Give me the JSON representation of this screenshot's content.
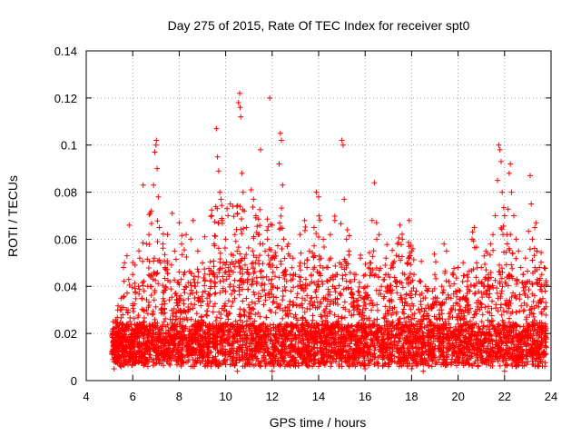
{
  "chart_data": {
    "type": "scatter",
    "title": "Day 275 of 2015, Rate Of TEC Index for receiver spt0",
    "xlabel": "GPS time / hours",
    "ylabel": "ROTI / TECUs",
    "xlim": [
      4,
      24
    ],
    "ylim": [
      0,
      0.14
    ],
    "xticks": [
      4,
      6,
      8,
      10,
      12,
      14,
      16,
      18,
      20,
      22,
      24
    ],
    "xtick_labels": [
      "4",
      "6",
      "8",
      "10",
      "12",
      "14",
      "16",
      "18",
      "20",
      "22",
      "24"
    ],
    "yticks": [
      0,
      0.02,
      0.04,
      0.06,
      0.08,
      0.1,
      0.12,
      0.14
    ],
    "ytick_labels": [
      "0",
      "0.02",
      "0.04",
      "0.06",
      "0.08",
      "0.1",
      "0.12",
      "0.14"
    ],
    "grid": true,
    "marker": "+",
    "color": "#ff0000",
    "x_data_range": [
      5.1,
      23.8
    ],
    "series": [
      {
        "name": "ROTI",
        "points": [
          [
            5.1,
            0.012
          ],
          [
            5.15,
            0.02
          ],
          [
            5.2,
            0.008
          ],
          [
            5.25,
            0.025
          ],
          [
            5.3,
            0.015
          ],
          [
            5.35,
            0.03
          ],
          [
            5.4,
            0.01
          ],
          [
            5.45,
            0.018
          ],
          [
            5.5,
            0.035
          ],
          [
            5.55,
            0.022
          ],
          [
            5.6,
            0.048
          ],
          [
            5.65,
            0.05
          ],
          [
            5.7,
            0.014
          ],
          [
            5.75,
            0.053
          ],
          [
            5.8,
            0.03
          ],
          [
            5.85,
            0.066
          ],
          [
            5.9,
            0.012
          ],
          [
            6.0,
            0.045
          ],
          [
            6.05,
            0.02
          ],
          [
            6.1,
            0.049
          ],
          [
            6.2,
            0.018
          ],
          [
            6.25,
            0.04
          ],
          [
            6.3,
            0.052
          ],
          [
            6.4,
            0.035
          ],
          [
            6.45,
            0.083
          ],
          [
            6.5,
            0.025
          ],
          [
            6.55,
            0.012
          ],
          [
            6.6,
            0.058
          ],
          [
            6.65,
            0.04
          ],
          [
            6.7,
            0.062
          ],
          [
            6.8,
            0.072
          ],
          [
            6.85,
            0.028
          ],
          [
            6.9,
            0.083
          ],
          [
            6.95,
            0.097
          ],
          [
            7.0,
            0.1
          ],
          [
            7.02,
            0.102
          ],
          [
            7.05,
            0.09
          ],
          [
            7.1,
            0.078
          ],
          [
            7.15,
            0.065
          ],
          [
            7.2,
            0.05
          ],
          [
            7.25,
            0.03
          ],
          [
            7.3,
            0.058
          ],
          [
            7.4,
            0.048
          ],
          [
            7.5,
            0.062
          ],
          [
            7.55,
            0.02
          ],
          [
            7.6,
            0.042
          ],
          [
            7.7,
            0.071
          ],
          [
            7.75,
            0.015
          ],
          [
            7.8,
            0.055
          ],
          [
            7.9,
            0.036
          ],
          [
            8.0,
            0.067
          ],
          [
            8.05,
            0.025
          ],
          [
            8.1,
            0.058
          ],
          [
            8.2,
            0.045
          ],
          [
            8.3,
            0.062
          ],
          [
            8.4,
            0.03
          ],
          [
            8.5,
            0.06
          ],
          [
            8.55,
            0.012
          ],
          [
            8.6,
            0.068
          ],
          [
            8.7,
            0.04
          ],
          [
            8.8,
            0.055
          ],
          [
            8.9,
            0.022
          ],
          [
            9.0,
            0.05
          ],
          [
            9.1,
            0.061
          ],
          [
            9.2,
            0.035
          ],
          [
            9.3,
            0.045
          ],
          [
            9.4,
            0.07
          ],
          [
            9.5,
            0.058
          ],
          [
            9.6,
            0.107
          ],
          [
            9.65,
            0.095
          ],
          [
            9.7,
            0.089
          ],
          [
            9.75,
            0.08
          ],
          [
            9.8,
            0.077
          ],
          [
            9.85,
            0.068
          ],
          [
            9.9,
            0.05
          ],
          [
            10.0,
            0.06
          ],
          [
            10.1,
            0.07
          ],
          [
            10.2,
            0.075
          ],
          [
            10.3,
            0.074
          ],
          [
            10.4,
            0.062
          ],
          [
            10.5,
            0.071
          ],
          [
            10.55,
            0.118
          ],
          [
            10.6,
            0.122
          ],
          [
            10.62,
            0.116
          ],
          [
            10.65,
            0.112
          ],
          [
            10.7,
            0.088
          ],
          [
            10.75,
            0.08
          ],
          [
            10.8,
            0.072
          ],
          [
            10.9,
            0.065
          ],
          [
            11.0,
            0.045
          ],
          [
            11.1,
            0.081
          ],
          [
            11.2,
            0.077
          ],
          [
            11.3,
            0.07
          ],
          [
            11.4,
            0.062
          ],
          [
            11.5,
            0.098
          ],
          [
            11.6,
            0.058
          ],
          [
            11.7,
            0.055
          ],
          [
            11.8,
            0.06
          ],
          [
            11.9,
            0.12
          ],
          [
            12.0,
            0.066
          ],
          [
            12.1,
            0.052
          ],
          [
            12.2,
            0.048
          ],
          [
            12.3,
            0.092
          ],
          [
            12.35,
            0.105
          ],
          [
            12.4,
            0.102
          ],
          [
            12.45,
            0.083
          ],
          [
            12.5,
            0.06
          ],
          [
            12.6,
            0.045
          ],
          [
            12.7,
            0.058
          ],
          [
            12.8,
            0.038
          ],
          [
            12.9,
            0.052
          ],
          [
            13.0,
            0.045
          ],
          [
            13.1,
            0.04
          ],
          [
            13.2,
            0.062
          ],
          [
            13.3,
            0.035
          ],
          [
            13.4,
            0.068
          ],
          [
            13.5,
            0.048
          ],
          [
            13.6,
            0.055
          ],
          [
            13.7,
            0.042
          ],
          [
            13.8,
            0.065
          ],
          [
            13.9,
            0.08
          ],
          [
            14.0,
            0.078
          ],
          [
            14.1,
            0.052
          ],
          [
            14.2,
            0.06
          ],
          [
            14.3,
            0.035
          ],
          [
            14.4,
            0.048
          ],
          [
            14.5,
            0.062
          ],
          [
            14.6,
            0.04
          ],
          [
            14.7,
            0.068
          ],
          [
            14.8,
            0.045
          ],
          [
            14.9,
            0.05
          ],
          [
            15.0,
            0.102
          ],
          [
            15.05,
            0.1
          ],
          [
            15.1,
            0.077
          ],
          [
            15.2,
            0.06
          ],
          [
            15.3,
            0.055
          ],
          [
            15.4,
            0.042
          ],
          [
            15.5,
            0.035
          ],
          [
            15.6,
            0.045
          ],
          [
            15.7,
            0.038
          ],
          [
            15.8,
            0.052
          ],
          [
            15.9,
            0.03
          ],
          [
            16.0,
            0.045
          ],
          [
            16.1,
            0.04
          ],
          [
            16.2,
            0.05
          ],
          [
            16.3,
            0.068
          ],
          [
            16.4,
            0.084
          ],
          [
            16.5,
            0.06
          ],
          [
            16.6,
            0.062
          ],
          [
            16.7,
            0.04
          ],
          [
            16.8,
            0.035
          ],
          [
            16.9,
            0.052
          ],
          [
            17.0,
            0.045
          ],
          [
            17.1,
            0.038
          ],
          [
            17.2,
            0.05
          ],
          [
            17.3,
            0.042
          ],
          [
            17.4,
            0.058
          ],
          [
            17.5,
            0.066
          ],
          [
            17.6,
            0.06
          ],
          [
            17.7,
            0.045
          ],
          [
            17.8,
            0.05
          ],
          [
            17.9,
            0.068
          ],
          [
            18.0,
            0.055
          ],
          [
            18.1,
            0.045
          ],
          [
            18.2,
            0.038
          ],
          [
            18.3,
            0.03
          ],
          [
            18.4,
            0.042
          ],
          [
            18.5,
            0.035
          ],
          [
            18.6,
            0.04
          ],
          [
            18.7,
            0.032
          ],
          [
            18.8,
            0.025
          ],
          [
            18.9,
            0.038
          ],
          [
            19.0,
            0.045
          ],
          [
            19.1,
            0.035
          ],
          [
            19.2,
            0.03
          ],
          [
            19.3,
            0.04
          ],
          [
            19.4,
            0.058
          ],
          [
            19.5,
            0.055
          ],
          [
            19.6,
            0.042
          ],
          [
            19.7,
            0.035
          ],
          [
            19.8,
            0.045
          ],
          [
            19.9,
            0.038
          ],
          [
            20.0,
            0.048
          ],
          [
            20.1,
            0.03
          ],
          [
            20.2,
            0.042
          ],
          [
            20.3,
            0.035
          ],
          [
            20.4,
            0.045
          ],
          [
            20.5,
            0.038
          ],
          [
            20.6,
            0.06
          ],
          [
            20.7,
            0.065
          ],
          [
            20.8,
            0.05
          ],
          [
            20.9,
            0.042
          ],
          [
            21.0,
            0.048
          ],
          [
            21.1,
            0.04
          ],
          [
            21.2,
            0.055
          ],
          [
            21.3,
            0.045
          ],
          [
            21.4,
            0.058
          ],
          [
            21.5,
            0.062
          ],
          [
            21.6,
            0.07
          ],
          [
            21.7,
            0.085
          ],
          [
            21.75,
            0.1
          ],
          [
            21.8,
            0.098
          ],
          [
            21.85,
            0.093
          ],
          [
            21.9,
            0.08
          ],
          [
            22.0,
            0.07
          ],
          [
            22.1,
            0.062
          ],
          [
            22.2,
            0.088
          ],
          [
            22.25,
            0.092
          ],
          [
            22.3,
            0.08
          ],
          [
            22.4,
            0.07
          ],
          [
            22.5,
            0.06
          ],
          [
            22.6,
            0.055
          ],
          [
            22.7,
            0.048
          ],
          [
            22.8,
            0.045
          ],
          [
            22.9,
            0.052
          ],
          [
            23.0,
            0.042
          ],
          [
            23.1,
            0.087
          ],
          [
            23.15,
            0.075
          ],
          [
            23.2,
            0.06
          ],
          [
            23.3,
            0.065
          ],
          [
            23.4,
            0.055
          ],
          [
            23.5,
            0.048
          ],
          [
            23.6,
            0.045
          ],
          [
            23.7,
            0.04
          ],
          [
            23.75,
            0.038
          ]
        ],
        "baseline_points": [
          [
            5.2,
            0.005
          ],
          [
            5.6,
            0.01
          ],
          [
            6.0,
            0.008
          ],
          [
            6.5,
            0.01
          ],
          [
            7.0,
            0.012
          ],
          [
            7.5,
            0.008
          ],
          [
            8.0,
            0.01
          ],
          [
            8.5,
            0.006
          ],
          [
            9.0,
            0.01
          ],
          [
            9.5,
            0.008
          ],
          [
            10.0,
            0.012
          ],
          [
            10.5,
            0.004
          ],
          [
            11.0,
            0.008
          ],
          [
            11.5,
            0.006
          ],
          [
            12.0,
            0.004
          ],
          [
            12.5,
            0.008
          ],
          [
            13.0,
            0.006
          ],
          [
            13.5,
            0.01
          ],
          [
            14.0,
            0.006
          ],
          [
            14.5,
            0.008
          ],
          [
            15.0,
            0.006
          ],
          [
            15.5,
            0.01
          ],
          [
            16.0,
            0.005
          ],
          [
            16.5,
            0.008
          ],
          [
            17.0,
            0.006
          ],
          [
            17.5,
            0.008
          ],
          [
            18.0,
            0.005
          ],
          [
            18.5,
            0.004
          ],
          [
            19.0,
            0.01
          ],
          [
            19.5,
            0.012
          ],
          [
            20.0,
            0.01
          ],
          [
            20.5,
            0.012
          ],
          [
            21.0,
            0.01
          ],
          [
            21.5,
            0.008
          ],
          [
            22.0,
            0.004
          ],
          [
            22.5,
            0.006
          ],
          [
            23.0,
            0.008
          ],
          [
            23.5,
            0.01
          ]
        ]
      }
    ]
  }
}
